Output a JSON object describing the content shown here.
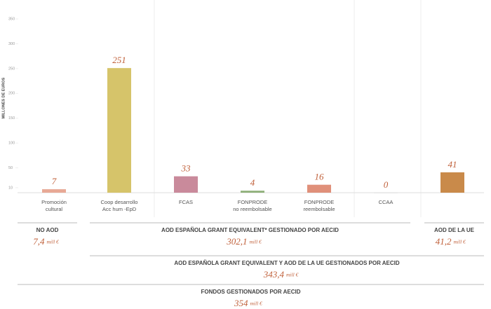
{
  "chart_data": {
    "type": "bar",
    "y_label": "MILLONES DE EUROS",
    "categories": [
      "Promoción\ncultural",
      "Coop desarrollo\nAcc hum -EpD",
      "FCAS",
      "FONPRODE\nno reembolsable",
      "FONPRODE\nreembolsable",
      "CCAA",
      null
    ],
    "values": [
      7,
      251,
      33,
      4,
      16,
      0,
      41
    ],
    "colors": [
      "#e8a996",
      "#d6c46a",
      "#c98a9b",
      "#8fb07a",
      "#e0907a",
      "#cccccc",
      "#c98a4a"
    ],
    "ylim": [
      0,
      350
    ],
    "yticks": [
      10,
      50,
      100,
      150,
      200,
      250,
      300,
      350
    ],
    "summaries": [
      {
        "title": "NO AOD",
        "value": "7,4",
        "unit": "mill €"
      },
      {
        "title": "AOD ESPAÑOLA GRANT EQUIVALENT* GESTIONADO POR AECID",
        "value": "302,1",
        "unit": "mill €"
      },
      {
        "title": "AOD DE LA UE",
        "value": "41,2",
        "unit": "mill €"
      },
      {
        "title": "AOD ESPAÑOLA GRANT EQUIVALENT Y AOD DE LA UE GESTIONADOS POR AECID",
        "value": "343,4",
        "unit": "mill €"
      },
      {
        "title": "FONDOS GESTIONADOS POR AECID",
        "value": "354",
        "unit": "mill €"
      }
    ]
  }
}
